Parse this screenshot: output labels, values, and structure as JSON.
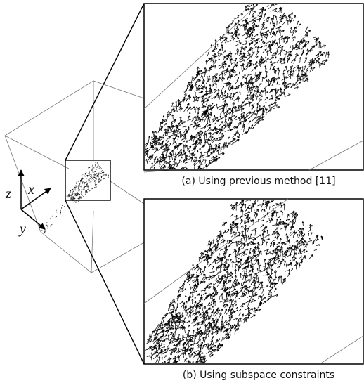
{
  "figure": {
    "axes": {
      "z": "z",
      "x": "x",
      "y": "y"
    },
    "panels": [
      {
        "caption": "(a) Using previous method [11]"
      },
      {
        "caption": "(b) Using subspace constraints"
      }
    ]
  }
}
